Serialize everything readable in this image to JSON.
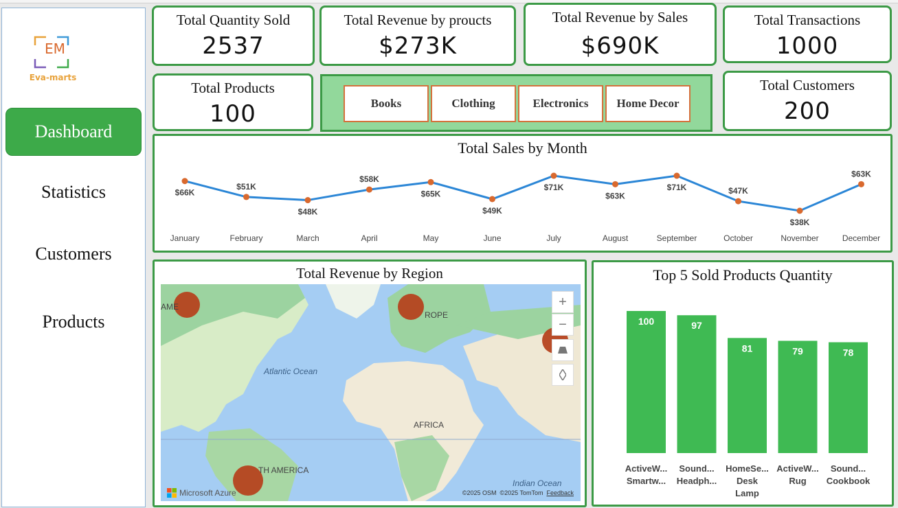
{
  "logo": {
    "initials": "EM",
    "name": "Eva-marts"
  },
  "nav": [
    {
      "label": "Dashboard",
      "active": true
    },
    {
      "label": "Statistics",
      "active": false
    },
    {
      "label": "Customers",
      "active": false
    },
    {
      "label": "Products",
      "active": false
    }
  ],
  "kpis": {
    "total_quantity": {
      "label": "Total Quantity Sold",
      "value": "2537"
    },
    "revenue_products": {
      "label": "Total Revenue by proucts",
      "value": "$273K"
    },
    "revenue_sales": {
      "label": "Total Revenue by Sales",
      "value": "$690K"
    },
    "transactions": {
      "label": "Total Transactions",
      "value": "1000"
    },
    "products": {
      "label": "Total Products",
      "value": "100"
    },
    "customers": {
      "label": "Total Customers",
      "value": "200"
    }
  },
  "categories": [
    "Books",
    "Clothing",
    "Electronics",
    "Home Decor"
  ],
  "colors": {
    "accent": "#3daa49",
    "border": "#3c9a46",
    "line": "#2b86d6",
    "marker": "#d9692e",
    "bar": "#3fba53",
    "bubble": "#b5431f"
  },
  "map": {
    "title": "Total Revenue by Region",
    "labels": {
      "atlantic": "Atlantic Ocean",
      "indian": "Indian Ocean",
      "africa": "AFRICA",
      "europe": "ROPE",
      "america": "TH AMERICA",
      "northam": "AME"
    },
    "attribution": {
      "brand": "Microsoft Azure",
      "osm": "©2025 OSM",
      "tomtom": "©2025 TomTom",
      "feedback": "Feedback"
    },
    "controls": {
      "zoom_in": "+",
      "zoom_out": "−"
    }
  },
  "chart_data": [
    {
      "type": "line",
      "title": "Total Sales by Month",
      "x": [
        "January",
        "February",
        "March",
        "April",
        "May",
        "June",
        "July",
        "August",
        "September",
        "October",
        "November",
        "December"
      ],
      "values": [
        66,
        51,
        48,
        58,
        65,
        49,
        71,
        63,
        71,
        47,
        38,
        63
      ],
      "labels": [
        "$66K",
        "$51K",
        "$48K",
        "$58K",
        "$65K",
        "$49K",
        "$71K",
        "$63K",
        "$71K",
        "$47K",
        "$38K",
        "$63K"
      ],
      "label_position": [
        "below",
        "above",
        "below",
        "above",
        "below",
        "below",
        "below",
        "below",
        "below",
        "above",
        "below",
        "above"
      ]
    },
    {
      "type": "bar",
      "title": "Top 5 Sold Products Quantity",
      "categories": [
        [
          "ActiveW...",
          "Smartw..."
        ],
        [
          "Sound...",
          "Headph..."
        ],
        [
          "HomeSe...",
          "Desk",
          "Lamp"
        ],
        [
          "ActiveW...",
          "Rug"
        ],
        [
          "Sound...",
          "Cookbook"
        ]
      ],
      "values": [
        100,
        97,
        81,
        79,
        78
      ]
    }
  ]
}
